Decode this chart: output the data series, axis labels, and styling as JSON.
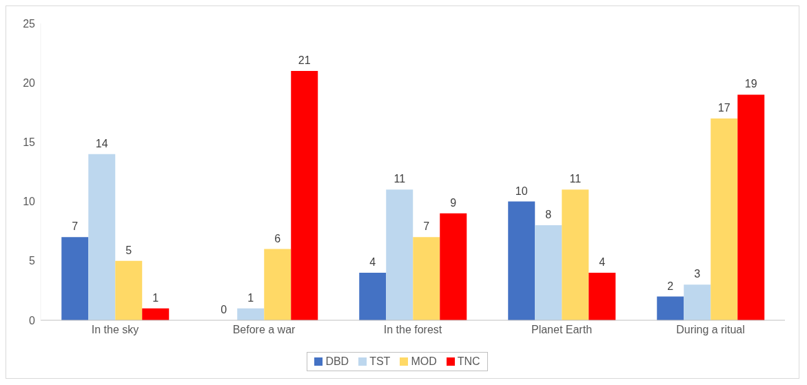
{
  "chart_data": {
    "type": "bar",
    "categories": [
      "In the sky",
      "Before a war",
      "In the forest",
      "Planet Earth",
      "During a ritual"
    ],
    "series": [
      {
        "name": "DBD",
        "color": "#4472c4",
        "values": [
          7,
          0,
          4,
          10,
          2
        ]
      },
      {
        "name": "TST",
        "color": "#bdd7ee",
        "values": [
          14,
          1,
          11,
          8,
          3
        ]
      },
      {
        "name": "MOD",
        "color": "#ffd966",
        "values": [
          5,
          6,
          7,
          11,
          17
        ]
      },
      {
        "name": "TNC",
        "color": "#ff0000",
        "values": [
          1,
          21,
          9,
          4,
          19
        ]
      }
    ],
    "ylim": [
      0,
      25
    ],
    "yticks": [
      0,
      5,
      10,
      15,
      20,
      25
    ],
    "data_labels": true,
    "legend": "bottom"
  }
}
